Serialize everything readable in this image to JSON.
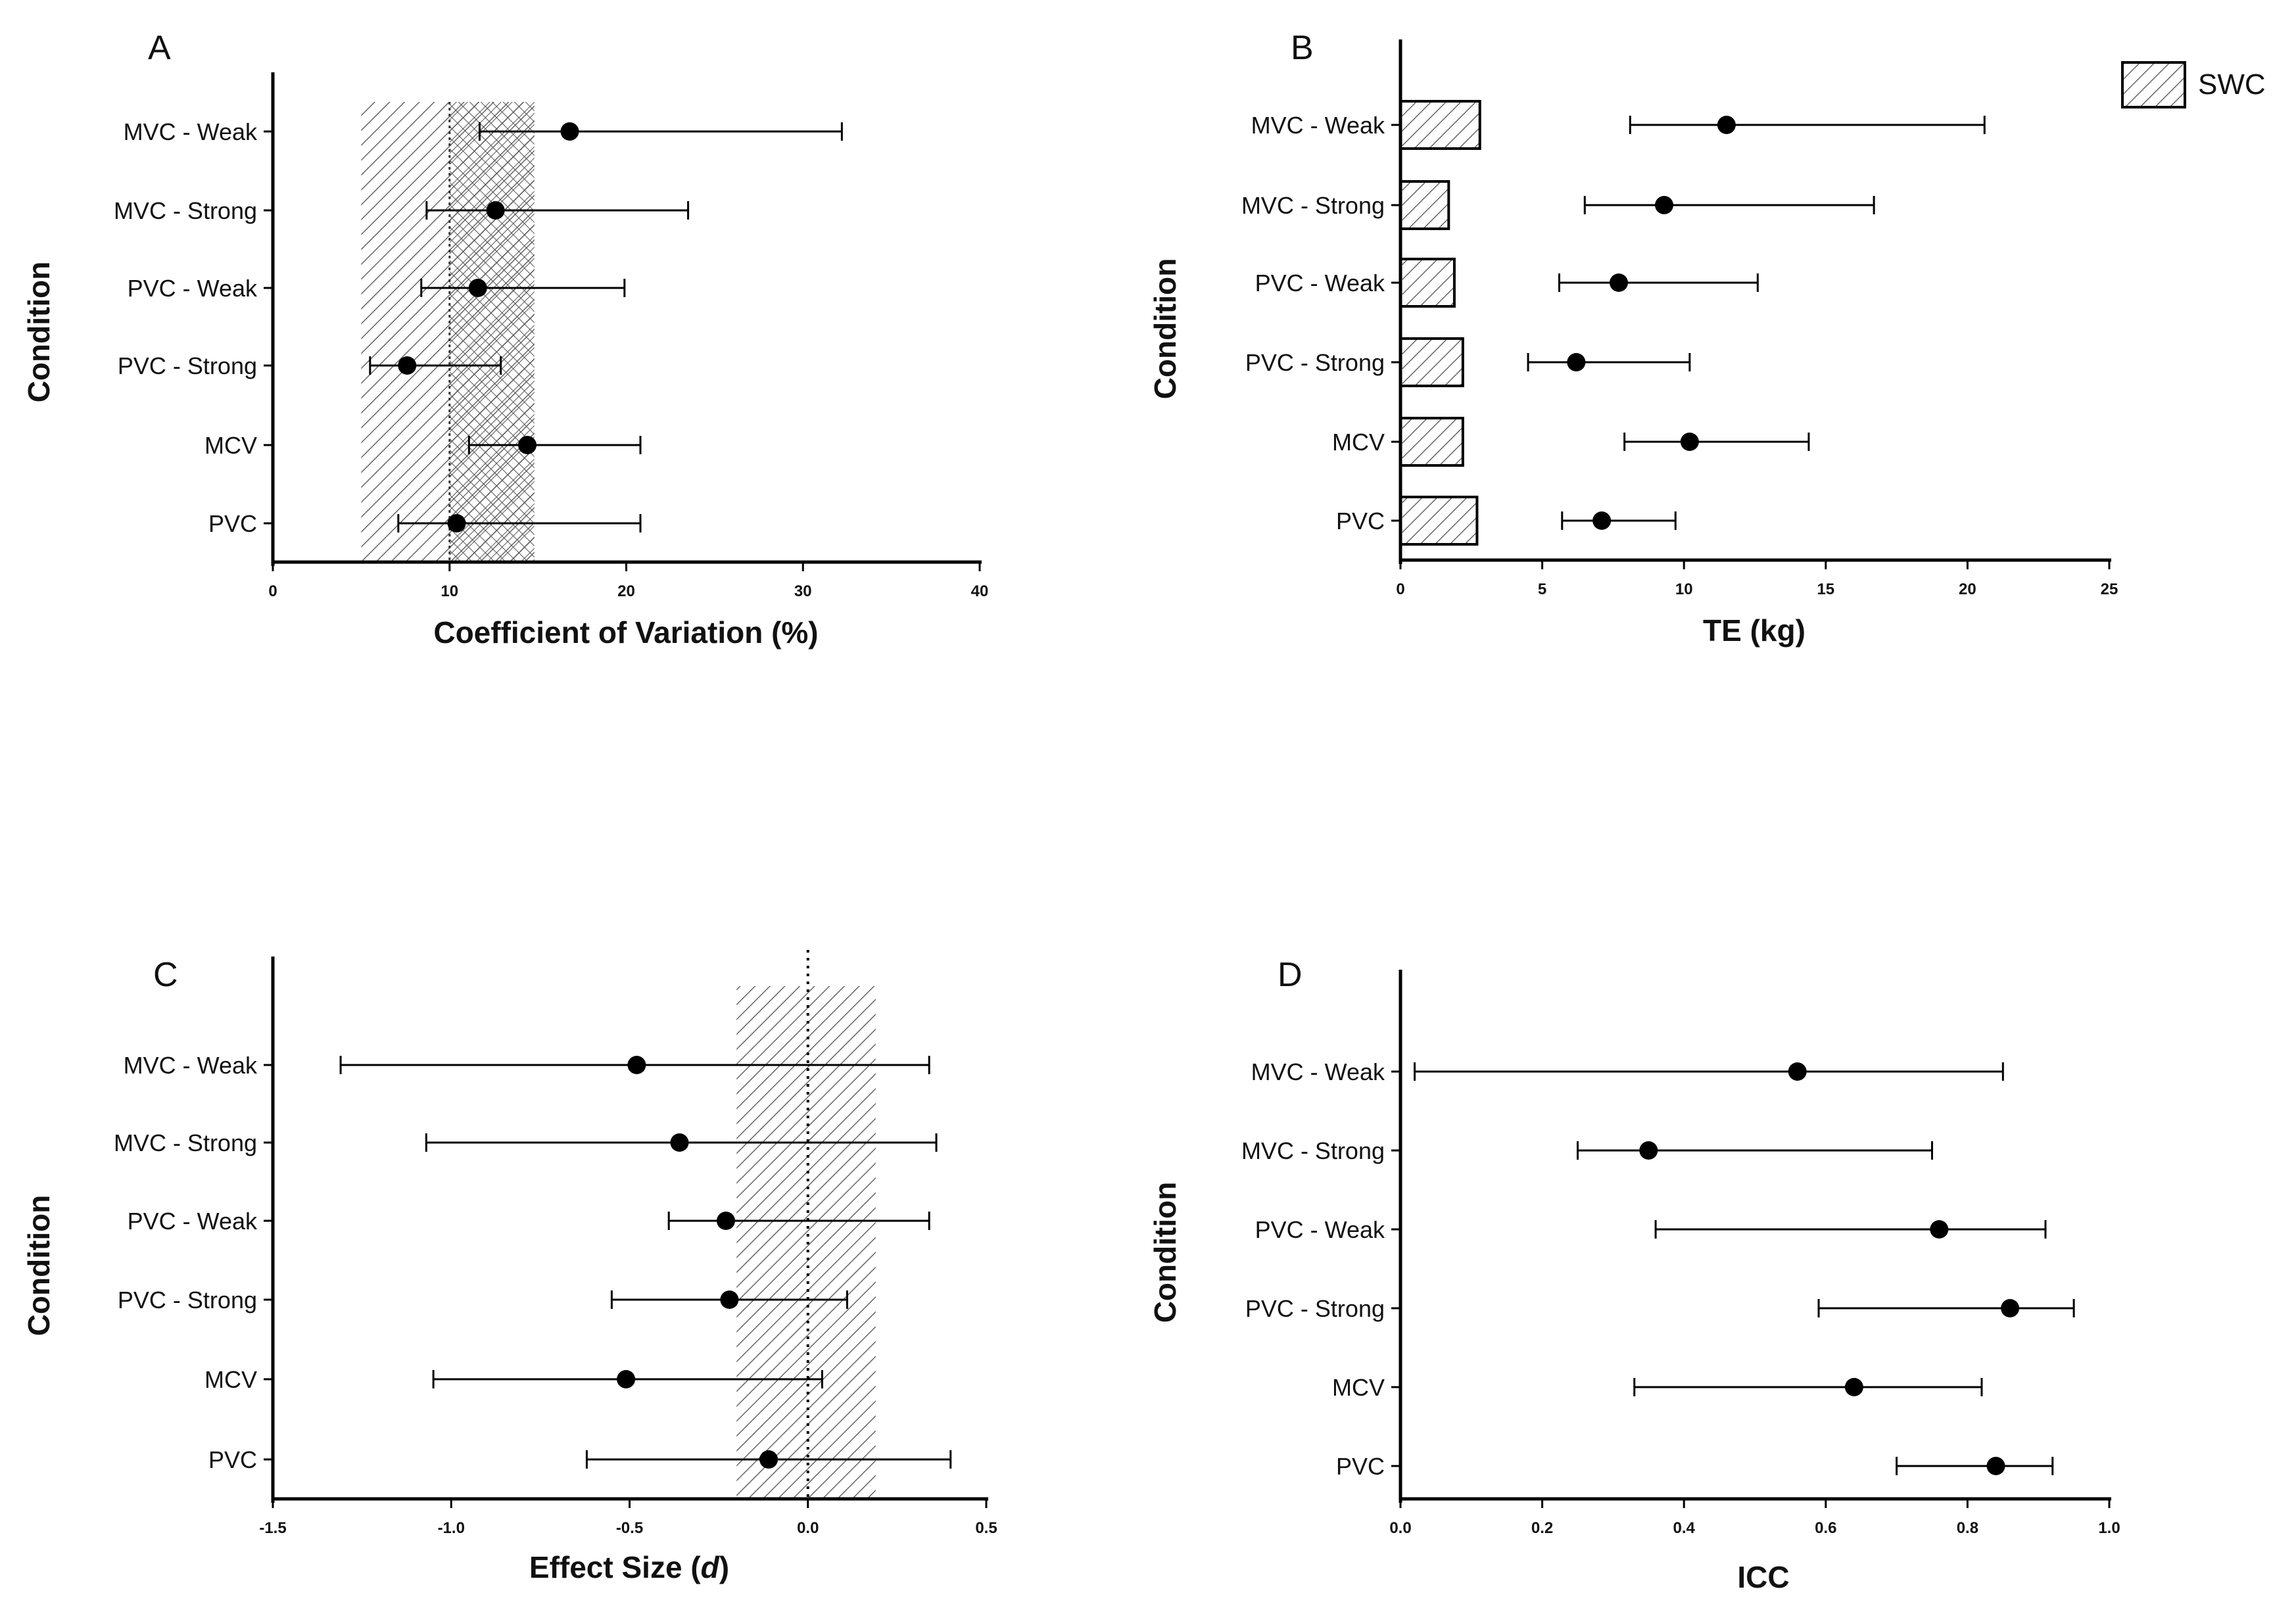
{
  "figure": {
    "legend": {
      "label": "SWC"
    },
    "colors": {
      "marker": "#000000",
      "axis": "#000000",
      "hatch": "#666666"
    }
  },
  "chart_data": [
    {
      "panel": "A",
      "type": "scatter",
      "categories": [
        "MVC - Weak",
        "MVC - Strong",
        "PVC - Weak",
        "PVC - Strong",
        "MCV",
        "PVC"
      ],
      "values": [
        16.8,
        12.6,
        11.6,
        7.6,
        14.4,
        10.4
      ],
      "ci_low": [
        11.7,
        8.7,
        8.4,
        5.5,
        11.1,
        7.1
      ],
      "ci_high": [
        32.2,
        23.5,
        19.9,
        12.9,
        20.8,
        20.8
      ],
      "swc_band": [
        5.0,
        14.8
      ],
      "xlabel": "Coefficient of Variation (%)",
      "ylabel": "Condition",
      "xlim": [
        0,
        40
      ],
      "xticks": [
        "0",
        "10",
        "20",
        "30",
        "40"
      ],
      "grid": false
    },
    {
      "panel": "B",
      "type": "bar",
      "categories": [
        "MVC - Weak",
        "MVC - Strong",
        "PVC - Weak",
        "PVC - Strong",
        "MCV",
        "PVC"
      ],
      "swc_values": [
        2.8,
        1.7,
        1.9,
        2.2,
        2.2,
        2.7
      ],
      "values": [
        11.5,
        9.3,
        7.7,
        6.2,
        10.2,
        7.1
      ],
      "ci_low": [
        8.1,
        6.5,
        5.6,
        4.5,
        7.9,
        5.7
      ],
      "ci_high": [
        20.6,
        16.7,
        12.6,
        10.2,
        14.4,
        9.7
      ],
      "xlabel": "TE (kg)",
      "ylabel": "Condition",
      "xlim": [
        0,
        25
      ],
      "xticks": [
        "0",
        "5",
        "10",
        "15",
        "20",
        "25"
      ],
      "legend_position": "top-right",
      "grid": false
    },
    {
      "panel": "C",
      "type": "scatter",
      "categories": [
        "MVC - Weak",
        "MVC - Strong",
        "PVC - Weak",
        "PVC - Strong",
        "MCV",
        "PVC"
      ],
      "values": [
        -0.48,
        -0.36,
        -0.23,
        -0.22,
        -0.51,
        -0.11
      ],
      "ci_low": [
        -1.31,
        -1.07,
        -0.39,
        -0.55,
        -1.05,
        -0.62
      ],
      "ci_high": [
        0.34,
        0.36,
        0.34,
        0.11,
        0.04,
        0.4
      ],
      "swc_band": [
        -0.2,
        0.19
      ],
      "reference_line": 0,
      "xlabel": "Effect Size (d)",
      "ylabel": "Condition",
      "xlim": [
        -1.5,
        0.5
      ],
      "xticks": [
        "-1.5",
        "-1.0",
        "-0.5",
        "0.0",
        "0.5"
      ],
      "grid": false
    },
    {
      "panel": "D",
      "type": "scatter",
      "categories": [
        "MVC - Weak",
        "MVC - Strong",
        "PVC - Weak",
        "PVC - Strong",
        "MCV",
        "PVC"
      ],
      "values": [
        0.56,
        0.35,
        0.76,
        0.86,
        0.64,
        0.84
      ],
      "ci_low": [
        0.02,
        0.25,
        0.36,
        0.59,
        0.33,
        0.7
      ],
      "ci_high": [
        0.85,
        0.75,
        0.91,
        0.95,
        0.82,
        0.92
      ],
      "xlabel": "ICC",
      "ylabel": "Condition",
      "xlim": [
        0,
        1
      ],
      "xticks": [
        "0.0",
        "0.2",
        "0.4",
        "0.6",
        "0.8",
        "1.0"
      ],
      "grid": false
    }
  ]
}
